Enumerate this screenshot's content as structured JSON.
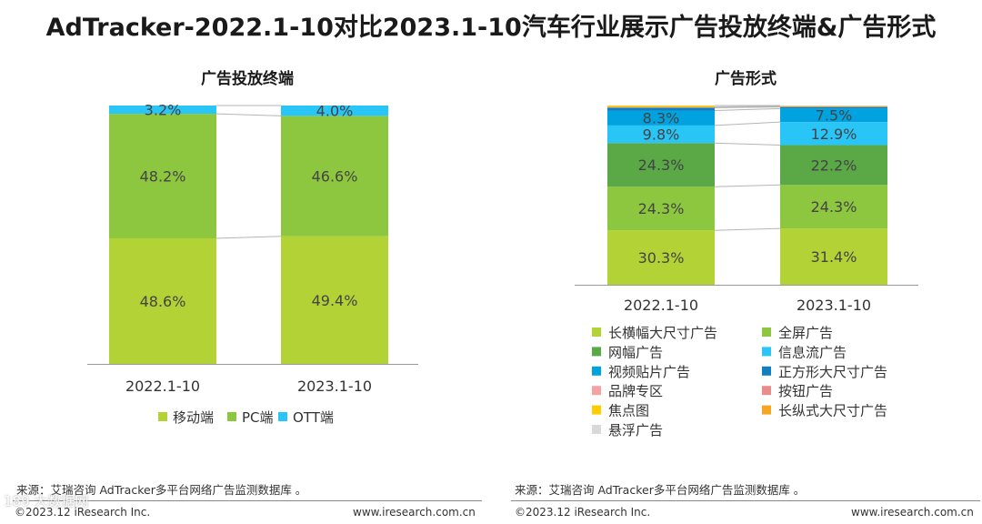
{
  "title": "AdTracker-2022.1-10对比2023.1-10汽车行业展示广告投放终端&广告形式",
  "chart_data": [
    {
      "type": "bar",
      "stacked": true,
      "title": "广告投放终端",
      "categories": [
        "2022.1-10",
        "2023.1-10"
      ],
      "ylim": [
        0,
        100
      ],
      "series": [
        {
          "name": "移动端",
          "color": "#b2d235",
          "values": [
            48.6,
            49.4
          ],
          "labels": [
            "48.6%",
            "49.4%"
          ]
        },
        {
          "name": "PC端",
          "color": "#8dc63f",
          "values": [
            48.2,
            46.6
          ],
          "labels": [
            "48.2%",
            "46.6%"
          ]
        },
        {
          "name": "OTT端",
          "color": "#29c5f6",
          "values": [
            3.2,
            4.0
          ],
          "labels": [
            "3.2%",
            "4.0%"
          ]
        }
      ],
      "legend_position": "bottom"
    },
    {
      "type": "bar",
      "stacked": true,
      "title": "广告形式",
      "categories": [
        "2022.1-10",
        "2023.1-10"
      ],
      "ylim": [
        0,
        100
      ],
      "series": [
        {
          "name": "长横幅大尺寸广告",
          "color": "#b2d235",
          "values": [
            30.3,
            31.4
          ],
          "labels": [
            "30.3%",
            "31.4%"
          ]
        },
        {
          "name": "全屏广告",
          "color": "#8dc63f",
          "values": [
            24.3,
            24.3
          ],
          "labels": [
            "24.3%",
            "24.3%"
          ]
        },
        {
          "name": "网幅广告",
          "color": "#5aa846",
          "values": [
            24.3,
            22.2
          ],
          "labels": [
            "24.3%",
            "22.2%"
          ]
        },
        {
          "name": "信息流广告",
          "color": "#29c5f6",
          "values": [
            9.8,
            12.9
          ],
          "labels": [
            "9.8%",
            "12.9%"
          ]
        },
        {
          "name": "视频贴片广告",
          "color": "#00a3e0",
          "values": [
            8.3,
            7.5
          ],
          "labels": [
            "8.3%",
            "7.5%"
          ]
        },
        {
          "name": "正方形大尺寸广告",
          "color": "#0f7fc1",
          "values": [
            1.6,
            0.9
          ],
          "labels": [
            "",
            ""
          ]
        },
        {
          "name": "品牌专区",
          "color": "#f4a3a3",
          "values": [
            0.2,
            0.2
          ],
          "labels": [
            "",
            ""
          ]
        },
        {
          "name": "按钮广告",
          "color": "#ec8b8b",
          "values": [
            0.2,
            0.1
          ],
          "labels": [
            "",
            ""
          ]
        },
        {
          "name": "焦点图",
          "color": "#ffcc00",
          "values": [
            0.8,
            0.3
          ],
          "labels": [
            "",
            ""
          ]
        },
        {
          "name": "长纵式大尺寸广告",
          "color": "#f5a623",
          "values": [
            0.0,
            0.1
          ],
          "labels": [
            "",
            ""
          ]
        },
        {
          "name": "悬浮广告",
          "color": "#d9d9d9",
          "values": [
            0.0,
            0.1
          ],
          "labels": [
            "",
            ""
          ]
        }
      ],
      "legend_position": "bottom"
    }
  ],
  "footer": {
    "source_left": "来源：艾瑞咨询 AdTracker多平台网络广告监测数据库 。",
    "source_right": "来源：艾瑞咨询 AdTracker多平台网络广告监测数据库 。",
    "copyright_left": "©2023.12 iResearch Inc.",
    "copyright_right": "©2023.12 iResearch Inc.",
    "website_left": "www.iresearch.com.cn",
    "website_right": "www.iresearch.com.cn",
    "watermark": "189 大数据网"
  }
}
